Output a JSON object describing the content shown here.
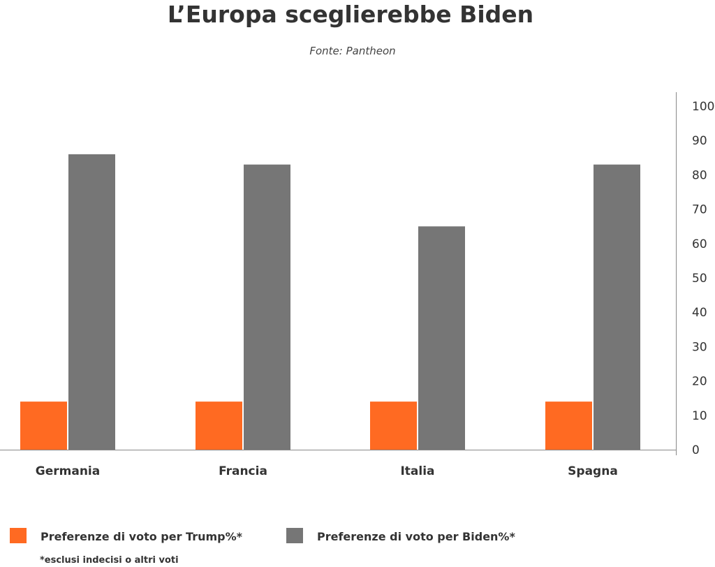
{
  "chart_data": {
    "type": "bar",
    "title": "L’Europa sceglierebbe Biden",
    "subtitle": "Fonte: Pantheon",
    "categories": [
      "Germania",
      "Francia",
      "Italia",
      "Spagna"
    ],
    "series": [
      {
        "name": "Preferenze di voto per Trump%*",
        "values": [
          14,
          14,
          14,
          14
        ],
        "color": "#FF6A22"
      },
      {
        "name": "Preferenze di voto per Biden%*",
        "values": [
          86,
          83,
          65,
          83
        ],
        "color": "#767676"
      }
    ],
    "y_axis": {
      "position": "right",
      "min": 0,
      "max": 100,
      "ticks": [
        "0",
        "10",
        "20",
        "30",
        "40",
        "50",
        "60",
        "70",
        "80",
        "90",
        "100"
      ]
    },
    "grid": false,
    "legend": "bottom-left",
    "note": "*esclusi indecisi o altri voti"
  }
}
